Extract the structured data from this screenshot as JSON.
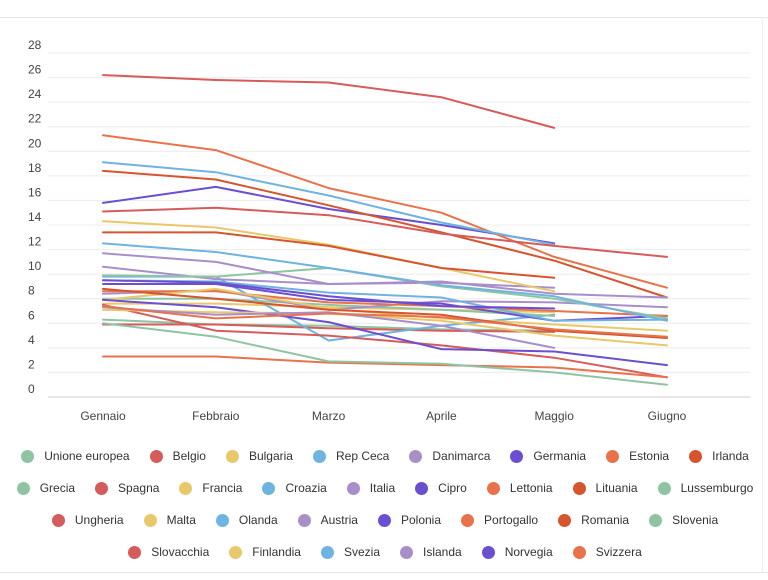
{
  "chart_data": {
    "type": "line",
    "title": "",
    "xlabel": "",
    "ylabel": "",
    "categories": [
      "Gennaio",
      "Febbraio",
      "Marzo",
      "Aprile",
      "Maggio",
      "Giugno"
    ],
    "ylim": [
      0,
      28
    ],
    "yticks": [
      0,
      2,
      4,
      6,
      8,
      10,
      12,
      14,
      16,
      18,
      20,
      22,
      24,
      26,
      28
    ],
    "grid": true,
    "legend_position": "bottom",
    "series": [
      {
        "name": "Unione europea",
        "color": "#8fc4a3",
        "values": [
          6.3,
          5.9,
          5.8,
          5.5,
          5.4,
          null
        ]
      },
      {
        "name": "Belgio",
        "color": "#d65b5b",
        "values": [
          5.9,
          5.9,
          5.6,
          5.4,
          5.3,
          null
        ]
      },
      {
        "name": "Bulgaria",
        "color": "#e8c86a",
        "values": [
          7.6,
          7.6,
          7.3,
          7.1,
          6.9,
          null
        ]
      },
      {
        "name": "Rep Ceca",
        "color": "#6fb3e0",
        "values": [
          9.8,
          9.8,
          4.6,
          5.8,
          6.7,
          null
        ]
      },
      {
        "name": "Danimarca",
        "color": "#a98fc9",
        "values": [
          10.6,
          9.6,
          9.2,
          9.3,
          8.9,
          null
        ]
      },
      {
        "name": "Germania",
        "color": "#6a4fd0",
        "values": [
          15.8,
          17.1,
          15.3,
          14.0,
          12.5,
          null
        ]
      },
      {
        "name": "Estonia",
        "color": "#e8734a",
        "values": [
          21.3,
          20.1,
          17.0,
          15.0,
          11.4,
          8.9
        ]
      },
      {
        "name": "Irlanda",
        "color": "#d6542e",
        "values": [
          18.4,
          17.7,
          15.6,
          13.4,
          11.1,
          8.1
        ]
      },
      {
        "name": "Grecia",
        "color": "#8fc4a3",
        "values": [
          8.0,
          8.0,
          7.5,
          7.1,
          6.6,
          null
        ]
      },
      {
        "name": "Spagna",
        "color": "#d65b5b",
        "values": [
          26.2,
          25.8,
          25.6,
          24.4,
          21.9,
          null
        ]
      },
      {
        "name": "Francia",
        "color": "#e8c86a",
        "values": [
          14.3,
          13.8,
          12.4,
          10.5,
          8.6,
          null
        ]
      },
      {
        "name": "Croazia",
        "color": "#6fb3e0",
        "values": [
          19.1,
          18.3,
          16.4,
          14.2,
          12.4,
          null
        ]
      },
      {
        "name": "Italia",
        "color": "#a98fc9",
        "values": [
          8.4,
          8.7,
          7.1,
          7.8,
          7.7,
          7.3
        ]
      },
      {
        "name": "Cipro",
        "color": "#6a4fd0",
        "values": [
          9.2,
          9.2,
          7.9,
          7.6,
          6.2,
          6.6
        ]
      },
      {
        "name": "Lettonia",
        "color": "#e8734a",
        "values": [
          8.6,
          8.6,
          7.7,
          7.4,
          7.0,
          6.6
        ]
      },
      {
        "name": "Lituania",
        "color": "#d6542e",
        "values": [
          13.4,
          13.4,
          12.3,
          10.5,
          9.7,
          null
        ]
      },
      {
        "name": "Lussemburgo",
        "color": "#8fc4a3",
        "values": [
          9.9,
          9.8,
          10.5,
          9.0,
          8.0,
          6.4
        ]
      },
      {
        "name": "Ungheria",
        "color": "#d65b5b",
        "values": [
          7.5,
          5.4,
          5.0,
          4.2,
          3.2,
          1.6
        ]
      },
      {
        "name": "Malta",
        "color": "#e8c86a",
        "values": [
          7.9,
          8.8,
          7.2,
          6.4,
          5.9,
          5.4
        ]
      },
      {
        "name": "Olanda",
        "color": "#6fb3e0",
        "values": [
          12.5,
          11.8,
          10.5,
          9.1,
          8.2,
          6.2
        ]
      },
      {
        "name": "Austria",
        "color": "#a98fc9",
        "values": [
          11.7,
          11.0,
          9.2,
          9.4,
          8.4,
          8.1
        ]
      },
      {
        "name": "Polonia",
        "color": "#6a4fd0",
        "values": [
          7.9,
          7.3,
          6.1,
          3.9,
          3.7,
          2.6
        ]
      },
      {
        "name": "Portogallo",
        "color": "#e8734a",
        "values": [
          3.3,
          3.3,
          2.8,
          2.6,
          2.4,
          1.6
        ]
      },
      {
        "name": "Romania",
        "color": "#d6542e",
        "values": [
          8.8,
          8.0,
          7.1,
          6.7,
          5.4,
          4.8
        ]
      },
      {
        "name": "Slovenia",
        "color": "#8fc4a3",
        "values": [
          6.0,
          4.9,
          2.9,
          2.7,
          2.0,
          1.0
        ]
      },
      {
        "name": "Slovacchia",
        "color": "#d65b5b",
        "values": [
          15.1,
          15.4,
          14.8,
          13.3,
          12.3,
          11.4
        ]
      },
      {
        "name": "Finlandia",
        "color": "#e8c86a",
        "values": [
          7.1,
          6.9,
          6.8,
          6.2,
          5.0,
          4.2
        ]
      },
      {
        "name": "Svezia",
        "color": "#6fb3e0",
        "values": [
          9.5,
          9.4,
          8.5,
          8.1,
          6.2,
          6.3
        ]
      },
      {
        "name": "Islanda",
        "color": "#a98fc9",
        "values": [
          7.3,
          6.7,
          6.9,
          5.8,
          4.0,
          null
        ]
      },
      {
        "name": "Norvegia",
        "color": "#6a4fd0",
        "values": [
          9.5,
          9.3,
          8.2,
          7.4,
          7.2,
          null
        ]
      },
      {
        "name": "Svizzera",
        "color": "#e8734a",
        "values": [
          7.4,
          6.4,
          6.8,
          6.5,
          5.5,
          4.9
        ]
      }
    ]
  },
  "legend": {
    "rows": [
      [
        0,
        1,
        2,
        3,
        4,
        5,
        6,
        7
      ],
      [
        8,
        9,
        10,
        11,
        12,
        13,
        14,
        15,
        16
      ],
      [
        17,
        18,
        19,
        20,
        21,
        22,
        23,
        24
      ],
      [
        25,
        26,
        27,
        28,
        29,
        30
      ]
    ]
  }
}
